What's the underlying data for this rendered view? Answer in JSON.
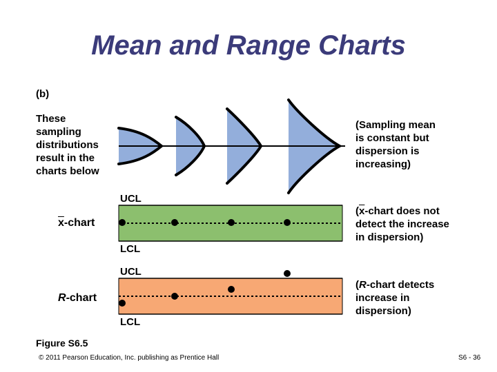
{
  "title": "Mean and Range Charts",
  "panel_label": "(b)",
  "left_note": "These\nsampling\ndistributions\nresult in the\ncharts below",
  "right_note_top": "(Sampling mean\nis constant but\ndispersion is\nincreasing)",
  "xbar_chart": {
    "name_symbol": "x",
    "name_suffix": "-chart",
    "ucl": "UCL",
    "lcl": "LCL",
    "note_prefix": "(",
    "note_symbol": "x",
    "note_rest": "-chart does not\ndetect the increase\nin dispersion)",
    "color": "#8cbf6e"
  },
  "r_chart": {
    "name_symbol": "R",
    "name_suffix": "-chart",
    "ucl": "UCL",
    "lcl": "LCL",
    "note_prefix": "(",
    "note_symbol": "R",
    "note_rest": "-chart detects\nincrease in\ndispersion)",
    "color": "#f7a874"
  },
  "distribution_color": "#93aedb",
  "figure_label": "Figure S6.5",
  "copyright": "© 2011 Pearson Education, Inc. publishing as Prentice Hall",
  "page_number": "S6 - 36"
}
